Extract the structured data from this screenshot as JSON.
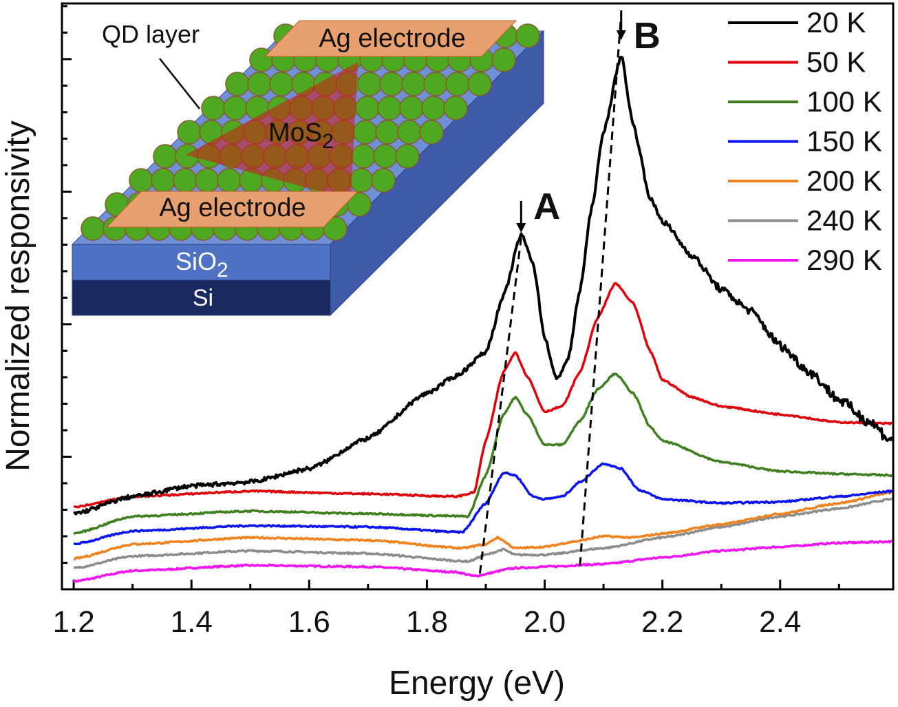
{
  "chart_data": {
    "type": "line",
    "xlabel": "Energy (eV)",
    "ylabel": "Normalized responsivity",
    "xlim": [
      1.18,
      2.592
    ],
    "ylim": [
      0,
      4.42
    ],
    "x_ticks": [
      "1.2",
      "1.4",
      "1.6",
      "1.8",
      "2.0",
      "2.2",
      "2.4"
    ],
    "y_tick_labels_shown": false,
    "grid": false,
    "legend_placement": "top-right",
    "series": [
      {
        "name": "20 K",
        "color": "#000000",
        "x": [
          1.2,
          1.3,
          1.4,
          1.5,
          1.6,
          1.7,
          1.8,
          1.85,
          1.9,
          1.93,
          1.96,
          1.98,
          2.0,
          2.02,
          2.04,
          2.06,
          2.08,
          2.1,
          2.13,
          2.15,
          2.18,
          2.2,
          2.25,
          2.3,
          2.35,
          2.4,
          2.45,
          2.5,
          2.55,
          2.59
        ],
        "y": [
          0.57,
          0.7,
          0.78,
          0.81,
          0.91,
          1.14,
          1.48,
          1.61,
          1.79,
          2.21,
          2.68,
          2.47,
          1.9,
          1.58,
          1.74,
          2.26,
          2.88,
          3.45,
          4.03,
          3.51,
          2.94,
          2.78,
          2.52,
          2.26,
          2.1,
          1.84,
          1.64,
          1.43,
          1.27,
          1.12
        ]
      },
      {
        "name": "50 K",
        "color": "#e0000a",
        "x": [
          1.2,
          1.3,
          1.5,
          1.7,
          1.85,
          1.88,
          1.9,
          1.93,
          1.95,
          1.97,
          2.0,
          2.03,
          2.06,
          2.09,
          2.12,
          2.15,
          2.18,
          2.2,
          2.25,
          2.3,
          2.4,
          2.5,
          2.59
        ],
        "y": [
          0.62,
          0.7,
          0.74,
          0.72,
          0.7,
          0.73,
          1.12,
          1.64,
          1.79,
          1.61,
          1.34,
          1.38,
          1.64,
          2.05,
          2.31,
          2.16,
          1.79,
          1.58,
          1.45,
          1.38,
          1.32,
          1.26,
          1.25
        ]
      },
      {
        "name": "100 K",
        "color": "#3f7f1f",
        "x": [
          1.2,
          1.3,
          1.5,
          1.7,
          1.87,
          1.9,
          1.93,
          1.95,
          1.97,
          2.0,
          2.03,
          2.06,
          2.09,
          2.12,
          2.15,
          2.18,
          2.2,
          2.3,
          2.4,
          2.5,
          2.59
        ],
        "y": [
          0.42,
          0.55,
          0.59,
          0.57,
          0.55,
          0.86,
          1.32,
          1.45,
          1.32,
          1.09,
          1.09,
          1.27,
          1.51,
          1.63,
          1.48,
          1.22,
          1.12,
          0.96,
          0.89,
          0.87,
          0.86
        ]
      },
      {
        "name": "150 K",
        "color": "#0a14f0",
        "x": [
          1.2,
          1.3,
          1.5,
          1.7,
          1.86,
          1.9,
          1.93,
          1.95,
          1.98,
          2.0,
          2.03,
          2.06,
          2.1,
          2.13,
          2.16,
          2.2,
          2.3,
          2.4,
          2.5,
          2.59
        ],
        "y": [
          0.34,
          0.44,
          0.48,
          0.47,
          0.43,
          0.65,
          0.88,
          0.86,
          0.7,
          0.68,
          0.7,
          0.81,
          0.95,
          0.91,
          0.75,
          0.68,
          0.65,
          0.66,
          0.7,
          0.74
        ]
      },
      {
        "name": "200 K",
        "color": "#f0821e",
        "x": [
          1.2,
          1.3,
          1.5,
          1.7,
          1.86,
          1.9,
          1.92,
          1.95,
          2.0,
          2.05,
          2.1,
          2.15,
          2.2,
          2.3,
          2.4,
          2.5,
          2.59
        ],
        "y": [
          0.23,
          0.34,
          0.39,
          0.37,
          0.31,
          0.34,
          0.39,
          0.31,
          0.32,
          0.36,
          0.4,
          0.39,
          0.42,
          0.49,
          0.57,
          0.65,
          0.73
        ]
      },
      {
        "name": "240 K",
        "color": "#8c8c8c",
        "x": [
          1.2,
          1.3,
          1.5,
          1.7,
          1.87,
          1.9,
          1.93,
          1.95,
          2.0,
          2.1,
          2.2,
          2.3,
          2.4,
          2.5,
          2.59
        ],
        "y": [
          0.16,
          0.25,
          0.29,
          0.27,
          0.21,
          0.26,
          0.3,
          0.26,
          0.26,
          0.31,
          0.39,
          0.47,
          0.55,
          0.61,
          0.68
        ]
      },
      {
        "name": "290 K",
        "color": "#f014f0",
        "x": [
          1.2,
          1.3,
          1.5,
          1.7,
          1.85,
          1.88,
          1.95,
          2.0,
          2.1,
          2.2,
          2.3,
          2.4,
          2.5,
          2.59
        ],
        "y": [
          0.06,
          0.14,
          0.18,
          0.17,
          0.13,
          0.1,
          0.16,
          0.17,
          0.19,
          0.24,
          0.29,
          0.32,
          0.35,
          0.36
        ]
      }
    ],
    "annotations": [
      {
        "label": "A",
        "peak_shift_line": {
          "x": [
            1.89,
            1.96
          ],
          "y": [
            0.12,
            2.65
          ]
        },
        "arrow_x": 1.96
      },
      {
        "label": "B",
        "peak_shift_line": {
          "x": [
            2.06,
            2.13
          ],
          "y": [
            0.18,
            4.03
          ]
        },
        "arrow_x": 2.13
      }
    ]
  },
  "inset": {
    "qd_label": "QD layer",
    "top_electrode": "Ag electrode",
    "bottom_electrode": "Ag electrode",
    "mos2_label": "MoS",
    "mos2_sub": "2",
    "sio2_label": "SiO",
    "sio2_sub": "2",
    "si_label": "Si"
  }
}
